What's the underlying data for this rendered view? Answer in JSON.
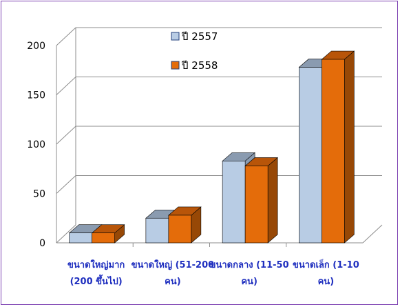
{
  "chart_data": {
    "type": "bar",
    "three_d": true,
    "categories": [
      [
        "ขนาดใหญ่มาก",
        "(200 ขึ้นไป)"
      ],
      [
        "ขนาดใหญ่ (51-200",
        "คน)"
      ],
      [
        "ขนาดกลาง (11-50",
        "คน)"
      ],
      [
        "ขนาดเล็ก (1-10",
        "คน)"
      ]
    ],
    "series": [
      {
        "name": "ปี 2557",
        "values": [
          10,
          25,
          83,
          178
        ]
      },
      {
        "name": "ปี 2558",
        "values": [
          10,
          28,
          78,
          186
        ]
      }
    ],
    "ylim": [
      0,
      200
    ],
    "yticks": [
      0,
      50,
      100,
      150,
      200
    ],
    "grid": true,
    "legend": "top-center",
    "colors": {
      "series": [
        "#b8cce4",
        "#e46c0a"
      ],
      "tops": [
        "#8a9bb0",
        "#b85509"
      ],
      "sides": [
        "#8a9bb0",
        "#974806"
      ],
      "category_text": "#1f2fbf",
      "frame": "#7a3db0"
    }
  }
}
